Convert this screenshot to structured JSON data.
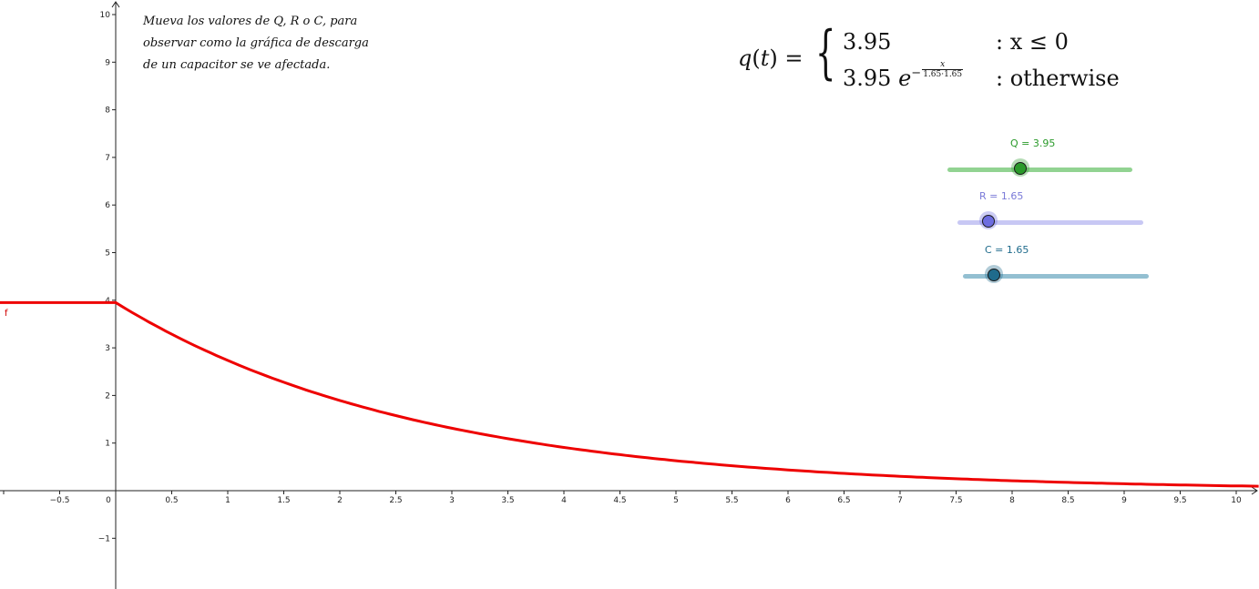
{
  "graph": {
    "x_axis_ticks": [
      "-0.5",
      "0",
      "0.5",
      "1",
      "1.5",
      "2",
      "2.5",
      "3",
      "3.5",
      "4",
      "4.5",
      "5",
      "5.5",
      "6",
      "6.5",
      "7",
      "7.5",
      "8",
      "8.5",
      "9",
      "9.5",
      "10"
    ],
    "y_axis_ticks": [
      "-1",
      "1",
      "2",
      "3",
      "4",
      "5",
      "6",
      "7",
      "8",
      "9",
      "10"
    ],
    "function_label": "f",
    "curve_color": "#ee0000"
  },
  "instructions": {
    "line1": "Mueva los valores de Q, R o C, para",
    "line2": "observar como la gráfica de descarga",
    "line3": "de un capacitor se ve afectada."
  },
  "formula": {
    "lhs_var": "q",
    "lhs_arg": "t",
    "row1_value": "3.95",
    "row1_condition": ": x ≤ 0",
    "row2_coef": "3.95",
    "row2_exp_var": "e",
    "row2_exp_sign": "−",
    "row2_frac_num": "x",
    "row2_frac_den": "1.65·1.65",
    "row2_condition": ": otherwise"
  },
  "sliders": {
    "q": {
      "label": "Q = 3.95",
      "value": 3.95,
      "min": 0,
      "max": 10,
      "color": "#2a9a2a",
      "track_color": "#92d392"
    },
    "r": {
      "label": "R = 1.65",
      "value": 1.65,
      "min": 0,
      "max": 10,
      "color": "#6d6de0",
      "track_color": "#c8c8f4"
    },
    "c": {
      "label": "C = 1.65",
      "value": 1.65,
      "min": 0,
      "max": 10,
      "color": "#1f6b8c",
      "track_color": "#93bfd1"
    }
  },
  "chart_data": {
    "type": "line",
    "title": "",
    "xlabel": "",
    "ylabel": "",
    "xlim": [
      -1,
      10.2
    ],
    "ylim": [
      -2,
      10.2
    ],
    "grid": false,
    "series": [
      {
        "name": "f",
        "x": [
          -1.0,
          0.0,
          0.5,
          1.0,
          1.5,
          2.0,
          2.5,
          3.0,
          3.5,
          4.0,
          4.5,
          5.0,
          5.5,
          6.0,
          6.5,
          7.0,
          7.5,
          8.0,
          8.5,
          9.0,
          9.5,
          10.0,
          10.2
        ],
        "y": [
          3.95,
          3.95,
          3.29,
          2.74,
          2.28,
          1.9,
          1.58,
          1.31,
          1.1,
          0.91,
          0.76,
          0.63,
          0.53,
          0.44,
          0.37,
          0.3,
          0.25,
          0.21,
          0.17,
          0.15,
          0.12,
          0.1,
          0.09
        ]
      }
    ]
  }
}
